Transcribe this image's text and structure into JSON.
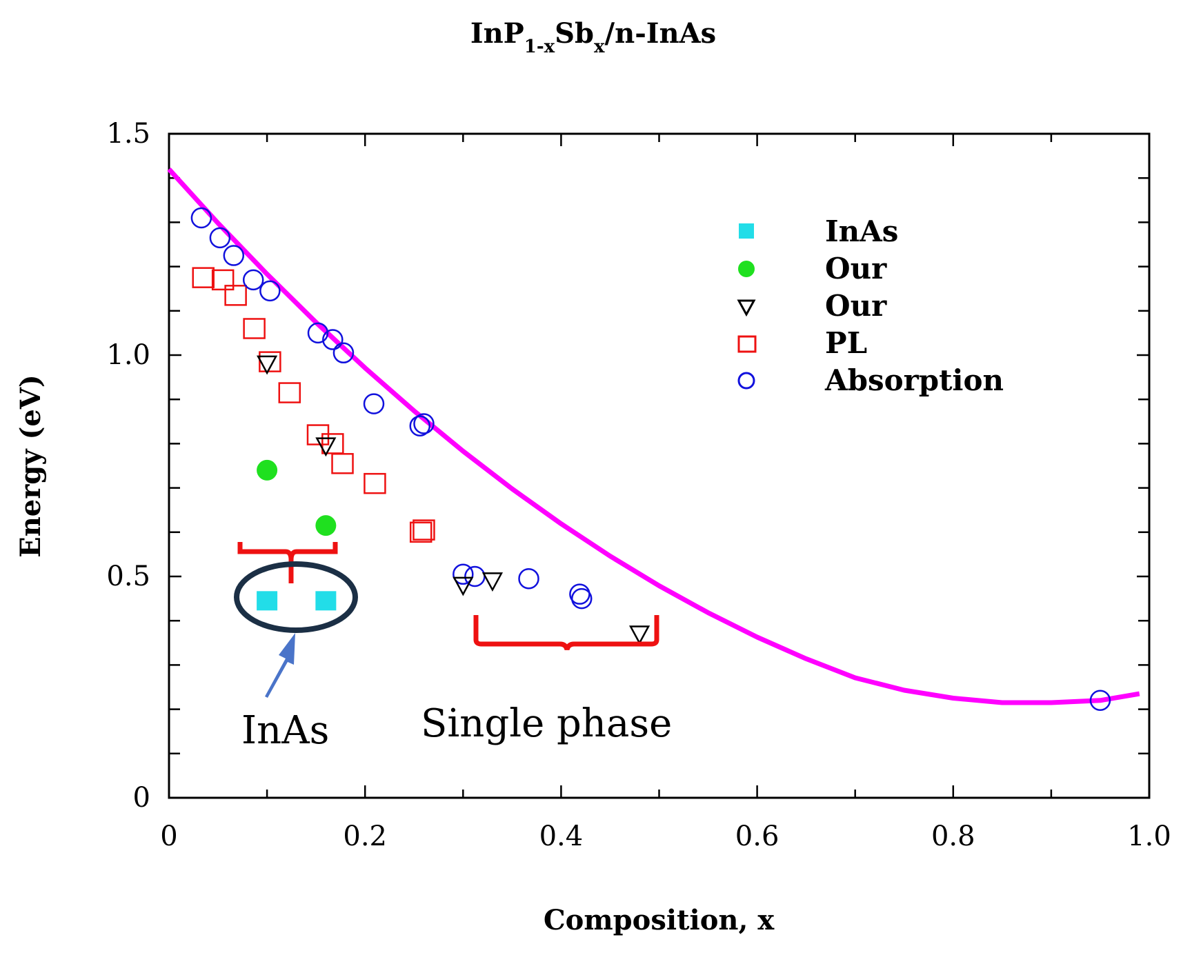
{
  "chart_data": {
    "type": "scatter",
    "title": {
      "prefix": "InP",
      "sub1": "1-x",
      "middle": "Sb",
      "sub2": "x",
      "suffix": "/n-InAs"
    },
    "xlabel": "Composition, x",
    "ylabel": "Energy (eV)",
    "xlim": [
      0,
      1.0
    ],
    "ylim": [
      0,
      1.5
    ],
    "xticks": [
      "0",
      "0.2",
      "0.4",
      "0.6",
      "0.8",
      "1.0"
    ],
    "xtick_values": [
      0,
      0.2,
      0.4,
      0.6,
      0.8,
      1.0
    ],
    "yticks": [
      "0",
      "0.5",
      "1.0",
      "1.5"
    ],
    "ytick_values": [
      0,
      0.5,
      1.0,
      1.5
    ],
    "series": [
      {
        "name": "InAs",
        "marker": "filled-square",
        "color": "#22dde8",
        "points": [
          [
            0.1,
            0.445
          ],
          [
            0.16,
            0.445
          ]
        ]
      },
      {
        "name": "Our",
        "marker": "filled-circle",
        "color": "#1fe01f",
        "points": [
          [
            0.1,
            0.74
          ],
          [
            0.16,
            0.615
          ]
        ]
      },
      {
        "name": "Our",
        "marker": "open-triangle-down",
        "color": "#000000",
        "points": [
          [
            0.1,
            0.98
          ],
          [
            0.16,
            0.795
          ],
          [
            0.3,
            0.48
          ],
          [
            0.33,
            0.49
          ],
          [
            0.48,
            0.37
          ]
        ]
      },
      {
        "name": "PL",
        "marker": "open-square",
        "color": "#ee1111",
        "points": [
          [
            0.035,
            1.175
          ],
          [
            0.055,
            1.17
          ],
          [
            0.068,
            1.135
          ],
          [
            0.087,
            1.06
          ],
          [
            0.103,
            0.985
          ],
          [
            0.123,
            0.915
          ],
          [
            0.152,
            0.82
          ],
          [
            0.167,
            0.8
          ],
          [
            0.177,
            0.755
          ],
          [
            0.21,
            0.71
          ],
          [
            0.257,
            0.6
          ],
          [
            0.26,
            0.605
          ]
        ]
      },
      {
        "name": "Absorption",
        "marker": "open-circle",
        "color": "#1111dd",
        "points": [
          [
            0.033,
            1.31
          ],
          [
            0.052,
            1.265
          ],
          [
            0.066,
            1.225
          ],
          [
            0.086,
            1.17
          ],
          [
            0.103,
            1.145
          ],
          [
            0.152,
            1.05
          ],
          [
            0.167,
            1.035
          ],
          [
            0.178,
            1.005
          ],
          [
            0.209,
            0.89
          ],
          [
            0.256,
            0.84
          ],
          [
            0.26,
            0.845
          ],
          [
            0.3,
            0.505
          ],
          [
            0.312,
            0.5
          ],
          [
            0.367,
            0.495
          ],
          [
            0.419,
            0.46
          ],
          [
            0.421,
            0.45
          ],
          [
            0.95,
            0.22
          ]
        ]
      }
    ],
    "fit_curve": {
      "color": "#ff00ff",
      "x": [
        0,
        0.05,
        0.1,
        0.15,
        0.2,
        0.25,
        0.3,
        0.35,
        0.4,
        0.45,
        0.5,
        0.55,
        0.6,
        0.65,
        0.7,
        0.75,
        0.8,
        0.85,
        0.9,
        0.95,
        0.99
      ],
      "y": [
        1.42,
        1.298,
        1.183,
        1.074,
        0.971,
        0.874,
        0.783,
        0.698,
        0.619,
        0.546,
        0.479,
        0.418,
        0.363,
        0.314,
        0.271,
        0.243,
        0.225,
        0.215,
        0.215,
        0.22,
        0.235
      ]
    },
    "legend_position": "top-right",
    "annotations": [
      {
        "text": "InAs",
        "kind": "grouping label",
        "bracket_x": [
          0.07,
          0.17
        ],
        "bracket_y": 0.57
      },
      {
        "text": "Single phase",
        "kind": "grouping label",
        "bracket_x": [
          0.31,
          0.5
        ],
        "bracket_y": 0.35
      }
    ]
  }
}
